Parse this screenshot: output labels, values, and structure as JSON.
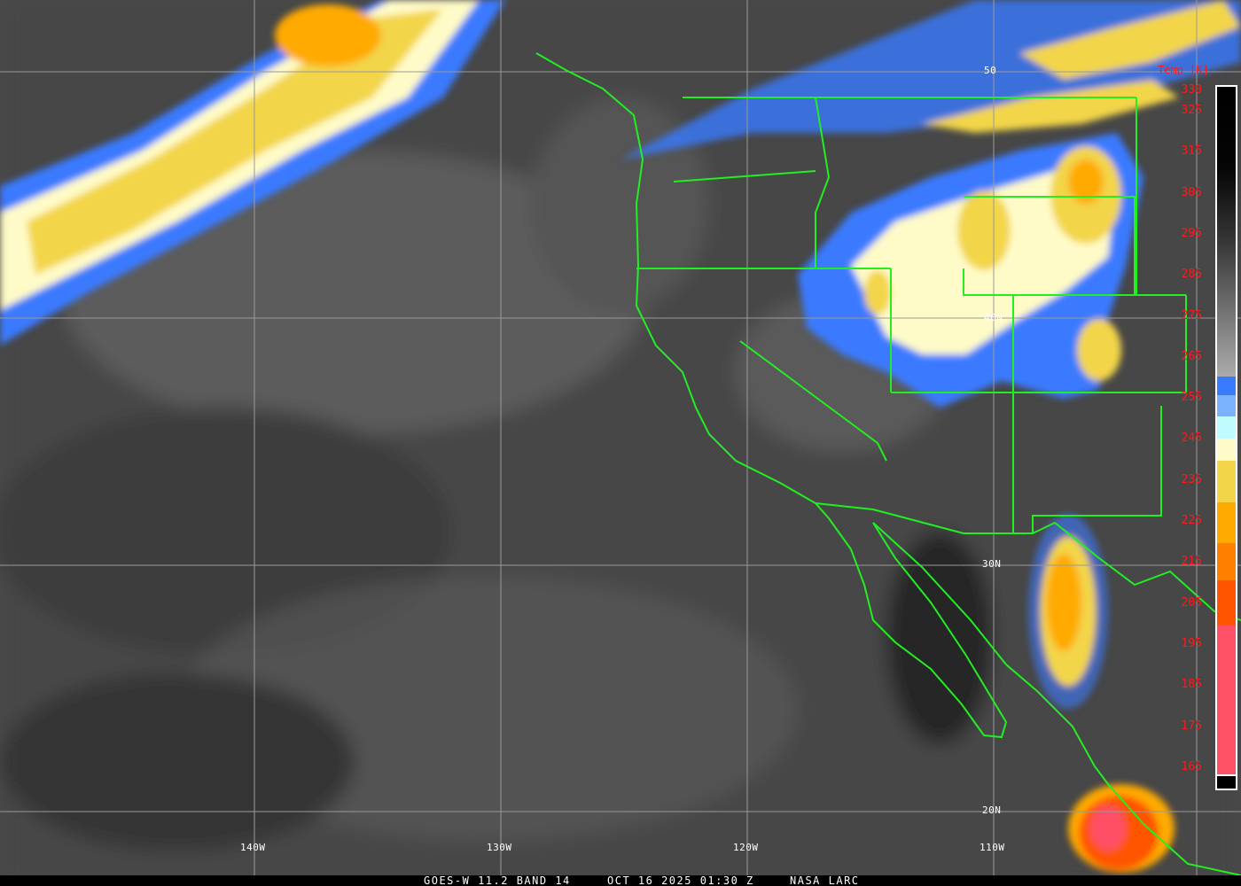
{
  "footer": {
    "satellite": "GOES-W 11.2 BAND 14",
    "datetime": "OCT 16 2025 01:30 Z",
    "credit": "NASA LARC"
  },
  "longitude_labels": [
    "140W",
    "130W",
    "120W",
    "110W"
  ],
  "latitude_labels": [
    "50",
    "40N",
    "30N",
    "20N"
  ],
  "colorbar": {
    "title": "Temp [K]",
    "ticks": [
      "330",
      "325",
      "315",
      "305",
      "295",
      "285",
      "275",
      "265",
      "255",
      "245",
      "235",
      "225",
      "215",
      "205",
      "195",
      "185",
      "175",
      "165"
    ],
    "colors": {
      "warm_gray_top": "#000000",
      "gray_bottom": "#a8a8a8",
      "blue": "#3a7aff",
      "light_blue": "#7ab2ff",
      "cyan": "#c0fbff",
      "pale_yellow": "#fffbc8",
      "yellow": "#f3d54a",
      "gold": "#ffaa00",
      "orange": "#ff8000",
      "red_orange": "#ff5500",
      "pink": "#ff5066"
    }
  },
  "map_colors": {
    "borders": "#22ee22",
    "grid": "#9a9a9a",
    "labels": "#ffffff"
  }
}
